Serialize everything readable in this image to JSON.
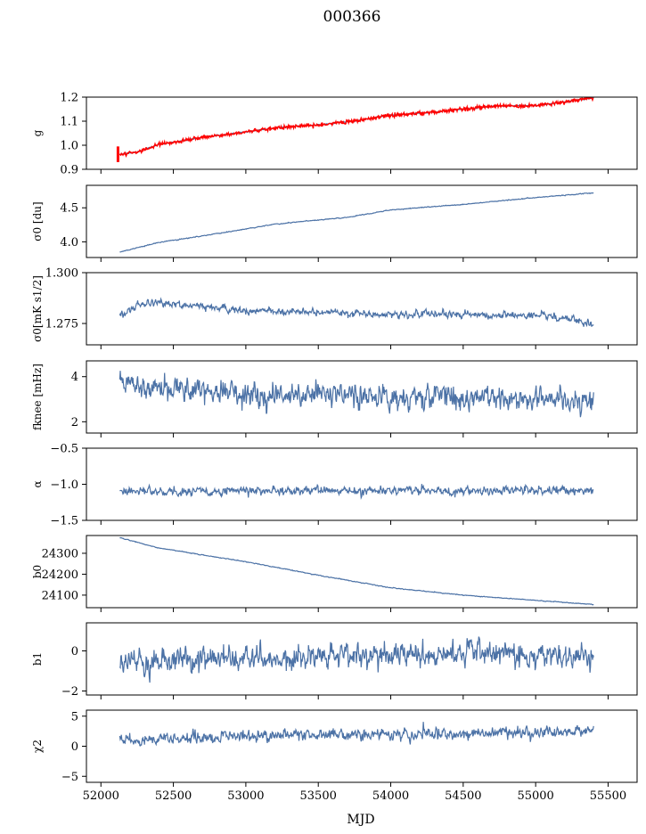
{
  "chart_data": {
    "type": "line",
    "title": "000366",
    "xlabel": "MJD",
    "xlim": [
      51900,
      55700
    ],
    "x_ticks": [
      "52000",
      "52500",
      "53000",
      "53500",
      "54000",
      "54500",
      "55000",
      "55500"
    ],
    "x_start": 52130,
    "x_end": 55400,
    "line_color": "#4c72a6",
    "panels": [
      {
        "ylabel": "g",
        "ylim": [
          0.9,
          1.2
        ],
        "y_ticks": [
          "0.9",
          "1.0",
          "1.1",
          "1.2"
        ],
        "noise": 0.002,
        "anchors": [
          [
            52130,
            0.962
          ],
          [
            52250,
            0.972
          ],
          [
            52400,
            1.003
          ],
          [
            52700,
            1.032
          ],
          [
            53000,
            1.055
          ],
          [
            53200,
            1.072
          ],
          [
            53500,
            1.085
          ],
          [
            53800,
            1.105
          ],
          [
            54000,
            1.125
          ],
          [
            54300,
            1.138
          ],
          [
            54500,
            1.15
          ],
          [
            54700,
            1.162
          ],
          [
            55000,
            1.165
          ],
          [
            55200,
            1.18
          ],
          [
            55400,
            1.198
          ]
        ],
        "overlay": {
          "color": "#ff0000",
          "noise": 0.004,
          "start_spike_range": [
            0.93,
            0.995
          ]
        }
      },
      {
        "ylabel": "σ0 [du]",
        "ylim": [
          3.77,
          4.83
        ],
        "y_ticks": [
          "4.0",
          "4.5"
        ],
        "noise": 0.005,
        "anchors": [
          [
            52130,
            3.85
          ],
          [
            52400,
            3.99
          ],
          [
            52800,
            4.12
          ],
          [
            53200,
            4.26
          ],
          [
            53700,
            4.36
          ],
          [
            54000,
            4.47
          ],
          [
            54500,
            4.55
          ],
          [
            55000,
            4.65
          ],
          [
            55400,
            4.72
          ]
        ]
      },
      {
        "ylabel": "σ0[mK s1/2]",
        "ylim": [
          1.2645,
          1.3
        ],
        "y_ticks": [
          "1.275",
          "1.300"
        ],
        "noise": 0.0015,
        "anchors": [
          [
            52130,
            1.2795
          ],
          [
            52300,
            1.2855
          ],
          [
            53000,
            1.2815
          ],
          [
            54000,
            1.2795
          ],
          [
            55000,
            1.279
          ],
          [
            55300,
            1.2765
          ],
          [
            55400,
            1.2745
          ]
        ]
      },
      {
        "ylabel": "fknee [mHz]",
        "ylim": [
          1.5,
          4.7
        ],
        "y_ticks": [
          "2",
          "4"
        ],
        "noise": 0.45,
        "anchors": [
          [
            52130,
            3.8
          ],
          [
            52500,
            3.5
          ],
          [
            53000,
            3.3
          ],
          [
            54000,
            3.1
          ],
          [
            55400,
            3.0
          ]
        ]
      },
      {
        "ylabel": "α",
        "ylim": [
          -1.5,
          -0.5
        ],
        "y_ticks": [
          "−1.5",
          "−1.0",
          "−0.5"
        ],
        "noise": 0.05,
        "anchors": [
          [
            52130,
            -1.1
          ],
          [
            55400,
            -1.08
          ]
        ]
      },
      {
        "ylabel": "b0",
        "ylim": [
          24040,
          24385
        ],
        "y_ticks": [
          "24100",
          "24200",
          "24300"
        ],
        "noise": 1.5,
        "anchors": [
          [
            52130,
            24375
          ],
          [
            52400,
            24325
          ],
          [
            53000,
            24260
          ],
          [
            53500,
            24195
          ],
          [
            54000,
            24135
          ],
          [
            54500,
            24100
          ],
          [
            55000,
            24075
          ],
          [
            55400,
            24055
          ]
        ]
      },
      {
        "ylabel": "b1",
        "ylim": [
          -2.2,
          1.4
        ],
        "y_ticks": [
          "−2",
          "0"
        ],
        "noise": 0.5,
        "anchors": [
          [
            52130,
            -0.5
          ],
          [
            53500,
            -0.3
          ],
          [
            54500,
            -0.1
          ],
          [
            55400,
            -0.3
          ]
        ]
      },
      {
        "ylabel": "χ2",
        "ylim": [
          -6,
          6
        ],
        "y_ticks": [
          "−5",
          "0",
          "5"
        ],
        "noise": 0.8,
        "anchors": [
          [
            52130,
            0.8
          ],
          [
            53000,
            1.8
          ],
          [
            54500,
            2.0
          ],
          [
            55400,
            2.6
          ]
        ]
      }
    ]
  }
}
